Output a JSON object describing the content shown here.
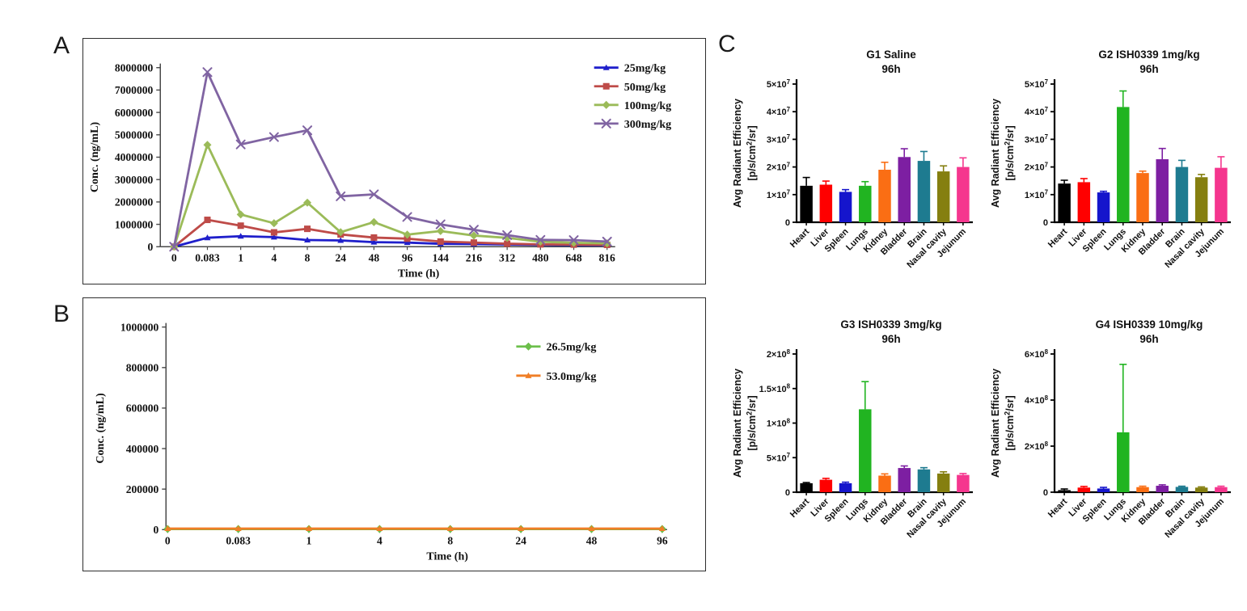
{
  "figure": {
    "panel_a_label": "A",
    "panel_b_label": "B",
    "panel_c_label": "C"
  },
  "chart_data": [
    {
      "id": "A",
      "type": "line",
      "title": "",
      "xlabel": "Time (h)",
      "ylabel": "Conc. (ng/mL)",
      "categories": [
        "0",
        "0.083",
        "1",
        "4",
        "8",
        "24",
        "48",
        "96",
        "144",
        "216",
        "312",
        "480",
        "648",
        "816"
      ],
      "ylim": [
        0,
        8000000
      ],
      "yticks": [
        0,
        1000000,
        2000000,
        3000000,
        4000000,
        5000000,
        6000000,
        7000000,
        8000000
      ],
      "grid": false,
      "legend_position": "top-right-inside",
      "series": [
        {
          "name": "25mg/kg",
          "color": "#1f1fcb",
          "marker": "triangle",
          "values": [
            0,
            400000,
            470000,
            430000,
            300000,
            280000,
            205000,
            185000,
            130000,
            120000,
            100000,
            85000,
            75000,
            65000
          ]
        },
        {
          "name": "50mg/kg",
          "color": "#be4b48",
          "marker": "square",
          "values": [
            0,
            1200000,
            940000,
            640000,
            800000,
            550000,
            410000,
            360000,
            230000,
            185000,
            135000,
            105000,
            95000,
            85000
          ]
        },
        {
          "name": "100mg/kg",
          "color": "#9bbb59",
          "marker": "diamond",
          "values": [
            0,
            4550000,
            1440000,
            1050000,
            1970000,
            650000,
            1100000,
            540000,
            700000,
            500000,
            395000,
            225000,
            175000,
            150000
          ]
        },
        {
          "name": "300mg/kg",
          "color": "#8064a2",
          "marker": "x",
          "values": [
            0,
            7800000,
            4570000,
            4900000,
            5200000,
            2250000,
            2340000,
            1330000,
            1000000,
            760000,
            520000,
            305000,
            295000,
            230000
          ]
        }
      ]
    },
    {
      "id": "B",
      "type": "line",
      "title": "",
      "xlabel": "Time (h)",
      "ylabel": "Conc. (ng/mL)",
      "categories": [
        "0",
        "0.083",
        "1",
        "4",
        "8",
        "24",
        "48",
        "96"
      ],
      "ylim": [
        0,
        1000000
      ],
      "yticks": [
        0,
        200000,
        400000,
        600000,
        800000,
        1000000
      ],
      "grid": false,
      "legend_position": "top-right-inside",
      "series": [
        {
          "name": "26.5mg/kg",
          "color": "#6cbf4b",
          "marker": "diamond",
          "values": [
            3000,
            3000,
            3000,
            3000,
            3000,
            3000,
            3000,
            3000
          ]
        },
        {
          "name": "53.0mg/kg",
          "color": "#f07e26",
          "marker": "triangle",
          "values": [
            5000,
            5000,
            5000,
            5000,
            5000,
            5000,
            5000,
            5000
          ]
        }
      ]
    },
    {
      "id": "G1",
      "type": "bar",
      "title": "G1 Saline",
      "subtitle": "96h",
      "ylabel_line1": "Avg Radiant Efficiency",
      "ylabel_line2": "[p/s/cm^{2}/sr]",
      "categories": [
        "Heart",
        "Liver",
        "Spleen",
        "Lungs",
        "Kidney",
        "Bladder",
        "Brain",
        "Nasal cavity",
        "Jejunum"
      ],
      "colors": [
        "#000000",
        "#ff0000",
        "#1515cc",
        "#21b421",
        "#fa6e14",
        "#7d1fa2",
        "#1e7b90",
        "#857f10",
        "#f5368e"
      ],
      "ylim": [
        0,
        50000000.0
      ],
      "yticks": [
        0,
        10000000.0,
        20000000.0,
        30000000.0,
        40000000.0,
        50000000.0
      ],
      "ytick_labels": [
        "0",
        "1×10^{7}",
        "2×10^{7}",
        "3×10^{7}",
        "4×10^{7}",
        "5×10^{7}"
      ],
      "values": [
        13200000.0,
        13600000.0,
        11000000.0,
        13200000.0,
        19000000.0,
        23600000.0,
        22200000.0,
        18400000.0,
        20000000.0
      ],
      "errors": [
        3000000.0,
        1300000.0,
        800000.0,
        1500000.0,
        2700000.0,
        3000000.0,
        3400000.0,
        2000000.0,
        3300000.0
      ]
    },
    {
      "id": "G2",
      "type": "bar",
      "title": "G2 ISH0339 1mg/kg",
      "subtitle": "96h",
      "ylabel_line1": "Avg Radiant Efficiency",
      "ylabel_line2": "[p/s/cm^{2}/sr]",
      "categories": [
        "Heart",
        "Liver",
        "Spleen",
        "Lungs",
        "Kidney",
        "Bladder",
        "Brain",
        "Nasal cavity",
        "Jejunum"
      ],
      "colors": [
        "#000000",
        "#ff0000",
        "#1515cc",
        "#21b421",
        "#fa6e14",
        "#7d1fa2",
        "#1e7b90",
        "#857f10",
        "#f5368e"
      ],
      "ylim": [
        0,
        50000000.0
      ],
      "yticks": [
        0,
        10000000.0,
        20000000.0,
        30000000.0,
        40000000.0,
        50000000.0
      ],
      "ytick_labels": [
        "0",
        "1×10^{7}",
        "2×10^{7}",
        "3×10^{7}",
        "4×10^{7}",
        "5×10^{7}"
      ],
      "values": [
        14000000.0,
        14500000.0,
        10800000.0,
        41700000.0,
        17800000.0,
        22800000.0,
        20000000.0,
        16300000.0,
        19700000.0
      ],
      "errors": [
        1200000.0,
        1300000.0,
        400000.0,
        5800000.0,
        700000.0,
        3900000.0,
        2400000.0,
        1000000.0,
        4000000.0
      ]
    },
    {
      "id": "G3",
      "type": "bar",
      "title": "G3 ISH0339 3mg/kg",
      "subtitle": "96h",
      "ylabel_line1": "Avg Radiant Efficiency",
      "ylabel_line2": "[p/s/cm^{2}/sr]",
      "categories": [
        "Heart",
        "Liver",
        "Spleen",
        "Lungs",
        "Kidney",
        "Bladder",
        "Brain",
        "Nasal cavity",
        "Jejunum"
      ],
      "colors": [
        "#000000",
        "#ff0000",
        "#1515cc",
        "#21b421",
        "#fa6e14",
        "#7d1fa2",
        "#1e7b90",
        "#857f10",
        "#f5368e"
      ],
      "ylim": [
        0,
        200000000.0
      ],
      "yticks": [
        0,
        50000000.0,
        100000000.0,
        150000000.0,
        200000000.0
      ],
      "ytick_labels": [
        "0",
        "5×10^{7}",
        "1×10^{8}",
        "1.5×10^{8}",
        "2×10^{8}"
      ],
      "values": [
        13000000.0,
        18000000.0,
        13000000.0,
        120000000.0,
        24000000.0,
        35000000.0,
        33000000.0,
        27000000.0,
        25000000.0
      ],
      "errors": [
        1000000.0,
        2000000.0,
        1500000.0,
        40000000.0,
        2500000.0,
        3000000.0,
        2500000.0,
        2500000.0,
        2000000.0
      ]
    },
    {
      "id": "G4",
      "type": "bar",
      "title": "G4 ISH0339 10mg/kg",
      "subtitle": "96h",
      "ylabel_line1": "Avg Radiant Efficiency",
      "ylabel_line2": "[p/s/cm^{2}/sr]",
      "categories": [
        "Heart",
        "Liver",
        "Spleen",
        "Lungs",
        "Kidney",
        "Bladder",
        "Brain",
        "Nasal cavity",
        "Jejunum"
      ],
      "colors": [
        "#000000",
        "#ff0000",
        "#1515cc",
        "#21b421",
        "#fa6e14",
        "#7d1fa2",
        "#1e7b90",
        "#857f10",
        "#f5368e"
      ],
      "ylim": [
        0,
        600000000.0
      ],
      "yticks": [
        0,
        200000000.0,
        400000000.0,
        600000000.0
      ],
      "ytick_labels": [
        "0",
        "2×10^{8}",
        "4×10^{8}",
        "6×10^{8}"
      ],
      "values": [
        9000000.0,
        20000000.0,
        16000000.0,
        260000000.0,
        22000000.0,
        28000000.0,
        23000000.0,
        20000000.0,
        22000000.0
      ],
      "errors": [
        5000000.0,
        5000000.0,
        5000000.0,
        295000000.0,
        4000000.0,
        4000000.0,
        3000000.0,
        3000000.0,
        4000000.0
      ]
    }
  ]
}
